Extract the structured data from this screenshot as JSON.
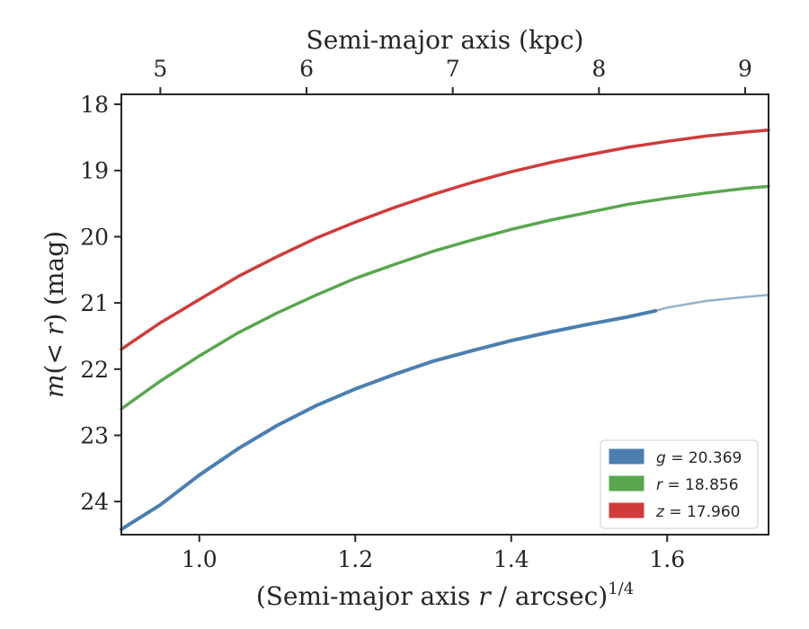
{
  "chart_data": {
    "type": "line",
    "title": "",
    "xlabel": "(Semi-major axis",
    "xlabel_var": "r",
    "xlabel_rest": "/ arcsec)",
    "xlabel_sup": "1/4",
    "ylabel_var": "m",
    "ylabel_paren": "(",
    "ylabel_lt": "<",
    "ylabel_r": "r",
    "ylabel_rest": ") (mag)",
    "top_xlabel": "Semi-major axis (kpc)",
    "xlim": [
      0.9,
      1.73
    ],
    "ylim": [
      24.5,
      17.85
    ],
    "y_inverted": true,
    "grid": false,
    "legend_placement": "lower-right",
    "x_ticks": [
      {
        "value": 1.0,
        "label": "1.0"
      },
      {
        "value": 1.2,
        "label": "1.2"
      },
      {
        "value": 1.4,
        "label": "1.4"
      },
      {
        "value": 1.6,
        "label": "1.6"
      }
    ],
    "y_ticks": [
      {
        "value": 18,
        "label": "18"
      },
      {
        "value": 19,
        "label": "19"
      },
      {
        "value": 20,
        "label": "20"
      },
      {
        "value": 21,
        "label": "21"
      },
      {
        "value": 22,
        "label": "22"
      },
      {
        "value": 23,
        "label": "23"
      },
      {
        "value": 24,
        "label": "24"
      }
    ],
    "top_ticks": [
      {
        "value": 5,
        "label": "5"
      },
      {
        "value": 6,
        "label": "6"
      },
      {
        "value": 7,
        "label": "7"
      },
      {
        "value": 8,
        "label": "8"
      },
      {
        "value": 9,
        "label": "9"
      }
    ],
    "top_axis_map": {
      "kpc": [
        5,
        9
      ],
      "x": [
        0.95,
        1.7
      ]
    },
    "series": [
      {
        "band": "g",
        "legend_label": "= 20.369",
        "color": "#4c7fb0",
        "faded_color": "#93b3cc",
        "solid_until_x": 1.585,
        "x": [
          0.9,
          0.95,
          1.0,
          1.05,
          1.1,
          1.15,
          1.2,
          1.25,
          1.3,
          1.35,
          1.4,
          1.45,
          1.5,
          1.55,
          1.585,
          1.6,
          1.65,
          1.7,
          1.73
        ],
        "y": [
          24.42,
          24.05,
          23.6,
          23.2,
          22.85,
          22.55,
          22.3,
          22.08,
          21.88,
          21.72,
          21.57,
          21.44,
          21.32,
          21.21,
          21.12,
          21.07,
          20.97,
          20.91,
          20.88
        ]
      },
      {
        "band": "r",
        "legend_label": "= 18.856",
        "color": "#59a64f",
        "x": [
          0.9,
          0.95,
          1.0,
          1.05,
          1.1,
          1.15,
          1.2,
          1.25,
          1.3,
          1.35,
          1.4,
          1.45,
          1.5,
          1.55,
          1.6,
          1.65,
          1.7,
          1.73
        ],
        "y": [
          22.6,
          22.18,
          21.8,
          21.45,
          21.15,
          20.88,
          20.63,
          20.42,
          20.22,
          20.05,
          19.89,
          19.75,
          19.63,
          19.51,
          19.42,
          19.34,
          19.27,
          19.24
        ]
      },
      {
        "band": "z",
        "legend_label": "= 17.960",
        "color": "#d03b3b",
        "x": [
          0.9,
          0.95,
          1.0,
          1.05,
          1.1,
          1.15,
          1.2,
          1.25,
          1.3,
          1.35,
          1.4,
          1.45,
          1.5,
          1.55,
          1.6,
          1.65,
          1.7,
          1.73
        ],
        "y": [
          21.7,
          21.3,
          20.95,
          20.6,
          20.3,
          20.02,
          19.78,
          19.56,
          19.36,
          19.18,
          19.02,
          18.88,
          18.76,
          18.65,
          18.56,
          18.48,
          18.42,
          18.39
        ]
      }
    ]
  }
}
